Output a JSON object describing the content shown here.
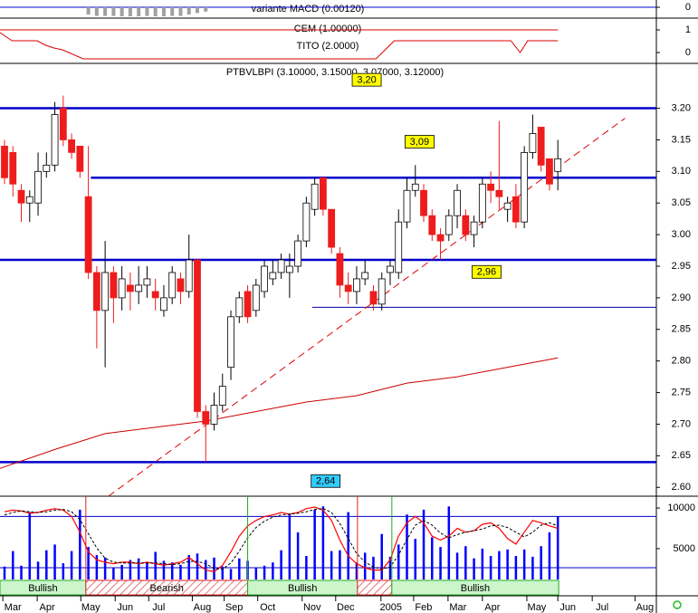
{
  "chart_data": [
    {
      "type": "bar",
      "title": "variante MACD (0.00120)",
      "color": "#a0a0a0",
      "grid": true,
      "grid_color": "#0000cc",
      "ylim": [
        -1.5,
        1
      ],
      "yticks": [
        0
      ],
      "x": [
        10,
        11,
        12,
        13,
        14,
        15,
        16,
        17,
        18,
        19,
        20,
        21,
        22,
        23,
        24
      ],
      "values": [
        -1.0,
        -1.2,
        -1.2,
        -1.2,
        -1.25,
        -1.25,
        -1.25,
        -1.2,
        -1.25,
        -1.25,
        -1.2,
        -1.2,
        -1.0,
        -0.8,
        -0.6
      ]
    },
    {
      "type": "line",
      "ylim": [
        -0.48,
        1.52
      ],
      "yticks": [
        0,
        1
      ],
      "series": [
        {
          "name": "CEM (1.00000)",
          "color": "#dd0000",
          "x": [
            -0.54,
            66.0
          ],
          "values": [
            1,
            1
          ]
        },
        {
          "name": "TITO (2.0000)",
          "color": "#dd0000",
          "x": [
            -0.54,
            0.9,
            3.9,
            4.9,
            5.9,
            6.9,
            9.4,
            44.3,
            46.5,
            60.4,
            61.5,
            62.4,
            66.0
          ],
          "values": [
            0.88,
            0.52,
            0.52,
            0.32,
            0.2,
            0.12,
            -0.28,
            -0.28,
            0.52,
            0.52,
            0.0,
            0.52,
            0.52
          ]
        }
      ]
    },
    {
      "type": "candlestick",
      "title": "PTBVLBPI (3.10000, 3.15000, 3.07000, 3.12000)",
      "up_color": "#ffffff",
      "down_color": "#ee1c1c",
      "xlim": [
        -0.54,
        77.75
      ],
      "ylim": [
        2.586,
        3.271
      ],
      "xticks": [
        {
          "value": -0.2,
          "label": "Mar"
        },
        {
          "value": 3.9,
          "label": "Apr"
        },
        {
          "value": 9.1,
          "label": "May"
        },
        {
          "value": 13.2,
          "label": "Jun"
        },
        {
          "value": 17.2,
          "label": "Jul"
        },
        {
          "value": 22.4,
          "label": "Aug"
        },
        {
          "value": 26.2,
          "label": "Sep"
        },
        {
          "value": 30.2,
          "label": "Oct"
        },
        {
          "value": 35.5,
          "label": "Nov"
        },
        {
          "value": 39.5,
          "label": "Dec"
        },
        {
          "value": 44.9,
          "label": "2005"
        },
        {
          "value": 48.8,
          "label": "Feb"
        },
        {
          "value": 52.9,
          "label": "Mar"
        },
        {
          "value": 57.0,
          "label": "Apr"
        },
        {
          "value": 62.3,
          "label": "May"
        },
        {
          "value": 66.0,
          "label": "Jun"
        },
        {
          "value": 70.1,
          "label": "Jul"
        },
        {
          "value": 75.2,
          "label": "Aug"
        }
      ],
      "yticks": [
        {
          "value": 2.6,
          "label": "2.60"
        },
        2.65,
        {
          "value": 2.7,
          "label": "2.70"
        },
        2.75,
        {
          "value": 2.8,
          "label": "2.80"
        },
        2.85,
        {
          "value": 2.9,
          "label": "2.90"
        },
        2.95,
        {
          "value": 3.0,
          "label": "3.00"
        },
        3.05,
        {
          "value": 3.1,
          "label": "3.10"
        },
        3.15,
        {
          "value": 3.2,
          "label": "3.20"
        }
      ],
      "x": [
        0,
        1,
        2,
        3,
        4,
        5,
        6,
        7,
        8,
        9,
        10,
        11,
        12,
        13,
        14,
        15,
        16,
        17,
        18,
        19,
        20,
        21,
        22,
        23,
        24,
        25,
        26,
        27,
        28,
        29,
        30,
        31,
        32,
        33,
        34,
        35,
        36,
        37,
        38,
        39,
        40,
        41,
        42,
        43,
        44,
        45,
        46,
        47,
        48,
        49,
        50,
        51,
        52,
        53,
        54,
        55,
        56,
        57,
        58,
        59,
        60,
        61,
        62,
        63,
        64,
        65,
        66
      ],
      "open": [
        3.14,
        3.13,
        3.07,
        3.05,
        3.05,
        3.1,
        3.11,
        3.2,
        3.15,
        3.14,
        3.06,
        2.94,
        2.88,
        2.94,
        2.9,
        2.92,
        2.91,
        2.92,
        2.91,
        2.88,
        2.9,
        2.93,
        2.91,
        2.96,
        2.72,
        2.7,
        2.73,
        2.79,
        2.87,
        2.91,
        2.88,
        2.91,
        2.93,
        2.94,
        2.94,
        2.95,
        2.99,
        3.04,
        3.09,
        3.04,
        2.97,
        2.92,
        2.91,
        2.93,
        2.91,
        2.89,
        2.94,
        2.94,
        3.02,
        3.07,
        3.07,
        3.03,
        3.0,
        3.0,
        3.03,
        3.03,
        3.0,
        3.02,
        3.08,
        3.07,
        3.04,
        3.06,
        3.02,
        3.13,
        3.17,
        3.12,
        3.1
      ],
      "high": [
        3.15,
        3.14,
        3.08,
        3.07,
        3.13,
        3.13,
        3.21,
        3.22,
        3.16,
        3.14,
        3.14,
        2.95,
        2.99,
        2.95,
        2.95,
        2.94,
        2.95,
        2.95,
        2.93,
        2.92,
        2.95,
        2.94,
        3.0,
        2.96,
        2.73,
        2.75,
        2.78,
        2.88,
        2.91,
        2.92,
        2.93,
        2.96,
        2.96,
        2.97,
        2.97,
        3.0,
        3.06,
        3.09,
        3.09,
        3.04,
        2.98,
        2.94,
        2.95,
        2.96,
        2.92,
        2.94,
        2.96,
        3.04,
        3.09,
        3.11,
        3.08,
        3.04,
        3.01,
        3.04,
        3.08,
        3.04,
        3.03,
        3.09,
        3.1,
        3.18,
        3.06,
        3.08,
        3.14,
        3.19,
        3.17,
        3.12,
        3.15
      ],
      "low": [
        3.08,
        3.06,
        3.02,
        3.02,
        3.03,
        3.09,
        3.1,
        3.14,
        3.12,
        3.09,
        2.93,
        2.82,
        2.79,
        2.86,
        2.88,
        2.88,
        2.89,
        2.9,
        2.88,
        2.87,
        2.89,
        2.89,
        2.9,
        2.71,
        2.64,
        2.69,
        2.72,
        2.77,
        2.86,
        2.86,
        2.87,
        2.9,
        2.92,
        2.93,
        2.9,
        2.94,
        2.98,
        3.03,
        3.03,
        2.97,
        2.9,
        2.89,
        2.89,
        2.92,
        2.88,
        2.88,
        2.92,
        2.93,
        3.01,
        3.06,
        3.02,
        2.99,
        2.96,
        2.99,
        3.01,
        2.99,
        2.98,
        3.01,
        3.05,
        3.04,
        3.02,
        3.01,
        3.01,
        3.12,
        3.1,
        3.07,
        3.07
      ],
      "close": [
        3.09,
        3.08,
        3.05,
        3.06,
        3.1,
        3.11,
        3.19,
        3.15,
        3.13,
        3.1,
        2.94,
        2.88,
        2.94,
        2.9,
        2.93,
        2.91,
        2.92,
        2.93,
        2.9,
        2.9,
        2.94,
        2.91,
        2.96,
        2.72,
        2.7,
        2.73,
        2.76,
        2.87,
        2.9,
        2.87,
        2.92,
        2.95,
        2.94,
        2.96,
        2.95,
        2.99,
        3.05,
        3.08,
        3.04,
        2.98,
        2.92,
        2.91,
        2.93,
        2.94,
        2.89,
        2.93,
        2.95,
        3.02,
        3.07,
        3.08,
        3.03,
        3.0,
        2.99,
        3.03,
        3.07,
        3.0,
        3.02,
        3.08,
        3.07,
        3.06,
        3.05,
        3.02,
        3.13,
        3.16,
        3.11,
        3.08,
        3.12
      ],
      "ma": {
        "color": "#cc0000",
        "x": [
          -0.54,
          6,
          12,
          18,
          24,
          30,
          36,
          42,
          48,
          54,
          60,
          66
        ],
        "values": [
          2.63,
          2.66,
          2.685,
          2.695,
          2.705,
          2.72,
          2.735,
          2.745,
          2.765,
          2.775,
          2.79,
          2.805
        ]
      },
      "hlines": [
        {
          "value": 3.2,
          "start": -0.54,
          "color": "#0000cc",
          "thin": false
        },
        {
          "value": 3.09,
          "start": 10.3,
          "color": "#0000cc",
          "thin": false
        },
        {
          "value": 2.96,
          "start": -0.54,
          "color": "#0000cc",
          "thin": false
        },
        {
          "value": 2.64,
          "start": -0.54,
          "color": "#0000cc",
          "thin": false
        },
        {
          "value": 2.885,
          "start": 36.7,
          "color": "#0000aa",
          "thin": true
        }
      ],
      "trendline": {
        "color": "#dd0000",
        "x": [
          12.4,
          74.0
        ],
        "values": [
          2.586,
          3.184
        ]
      },
      "annotations": [
        {
          "label": "3,20",
          "x": 43.2,
          "y": 3.245,
          "color": "#ffff00"
        },
        {
          "label": "3,09",
          "x": 49.5,
          "y": 3.147,
          "color": "#ffff00"
        },
        {
          "label": "2,96",
          "x": 57.5,
          "y": 2.941,
          "color": "#ffff00"
        },
        {
          "label": "2,64",
          "x": 38.3,
          "y": 2.61,
          "color": "#33ccff"
        }
      ]
    },
    {
      "type": "bar",
      "color": "#0000ff",
      "ylim": [
        1200,
        10900
      ],
      "yticks": [
        5000,
        10000
      ],
      "y2lim": [
        0,
        100
      ],
      "values": [
        2800,
        4700,
        2900,
        9500,
        3400,
        4800,
        5500,
        3200,
        4700,
        9800,
        5200,
        4200,
        3900,
        2700,
        3000,
        3600,
        3800,
        3200,
        4600,
        3500,
        3300,
        3000,
        4200,
        4400,
        3600,
        3900,
        2800,
        2500,
        3800,
        3500,
        2600,
        2900,
        3300,
        4800,
        9300,
        7000,
        4100,
        9800,
        10200,
        4700,
        4800,
        9500,
        3300,
        4500,
        4000,
        6800,
        4000,
        5500,
        9200,
        6200,
        9800,
        6400,
        5200,
        10200,
        4500,
        5300,
        3800,
        5000,
        4100,
        4700,
        4900,
        4100,
        4900,
        4000,
        5300,
        7000,
        9000
      ],
      "lines": [
        {
          "color": "#ff0000",
          "dash": false,
          "values": [
            86,
            88,
            87,
            84,
            85,
            88,
            90,
            88,
            80,
            60,
            35,
            25,
            22,
            20,
            22,
            22,
            20,
            22,
            20,
            18,
            20,
            22,
            28,
            20,
            12,
            10,
            18,
            35,
            55,
            68,
            75,
            80,
            82,
            85,
            83,
            85,
            90,
            92,
            88,
            75,
            50,
            30,
            20,
            15,
            12,
            12,
            25,
            55,
            72,
            80,
            72,
            55,
            50,
            55,
            65,
            60,
            62,
            70,
            72,
            65,
            52,
            45,
            60,
            75,
            72,
            68,
            65
          ]
        },
        {
          "color": "#000000",
          "dash": true,
          "values": [
            82,
            85,
            87,
            86,
            85,
            86,
            88,
            89,
            86,
            76,
            58,
            40,
            27,
            22,
            21,
            21,
            21,
            21,
            21,
            20,
            19,
            20,
            23,
            23,
            20,
            14,
            13,
            21,
            36,
            53,
            66,
            74,
            79,
            82,
            83,
            84,
            86,
            89,
            90,
            85,
            71,
            52,
            33,
            22,
            16,
            13,
            16,
            31,
            51,
            69,
            75,
            69,
            59,
            53,
            57,
            60,
            62,
            64,
            68,
            69,
            66,
            60,
            54,
            60,
            69,
            72,
            68
          ]
        }
      ],
      "levels": [
        80,
        15
      ],
      "level_color": "#0000cc",
      "regimes": [
        {
          "label": "Bullish",
          "start": -0.54,
          "end": 9.7,
          "color": "#22aa22",
          "pattern": "solid"
        },
        {
          "label": "Bearish",
          "start": 9.7,
          "end": 29.0,
          "color": "#dd2222",
          "pattern": "hatch"
        },
        {
          "label": "Bullish",
          "start": 29.0,
          "end": 42.1,
          "color": "#22aa22",
          "pattern": "solid"
        },
        {
          "label": null,
          "start": 42.1,
          "end": 46.2,
          "color": "#dd2222",
          "pattern": "hatch"
        },
        {
          "label": "Bullish",
          "start": 46.2,
          "end": 66.1,
          "color": "#22aa22",
          "pattern": "solid"
        }
      ]
    }
  ]
}
